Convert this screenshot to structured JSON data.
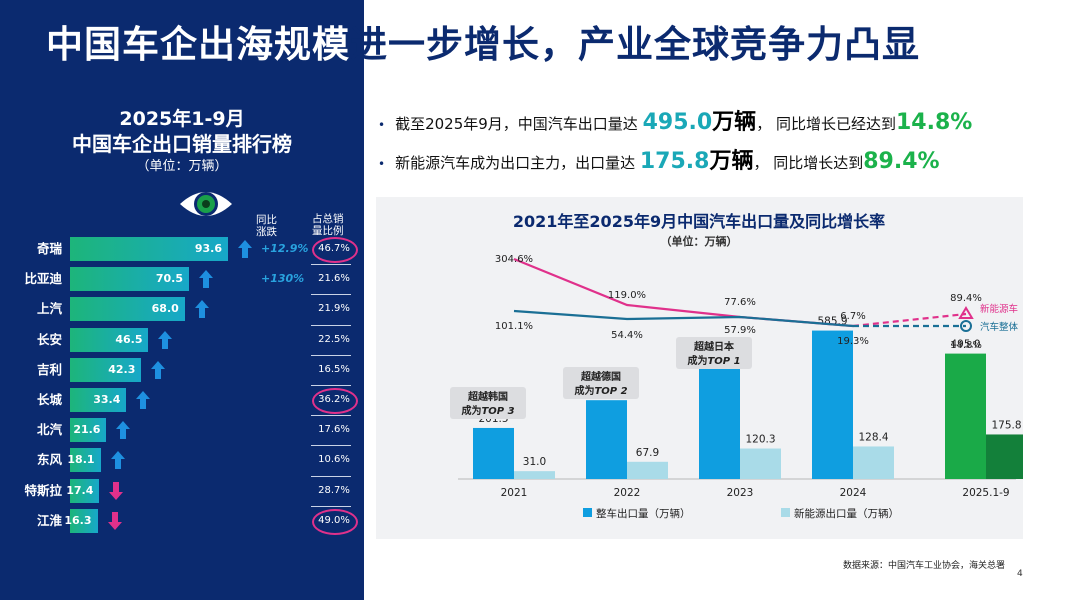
{
  "title": {
    "part1": "中国车企出海规模",
    "part2": "进一步增长，产业全球竞争力凸显"
  },
  "ranking": {
    "title_line1": "2025年1-9月",
    "title_line2": "中国车企出口销量排行榜",
    "unit": "（单位：万辆）",
    "col_yoy": [
      "同比",
      "涨跌"
    ],
    "col_share": [
      "占总销",
      "量比例"
    ],
    "max_value": 93.6,
    "rows": [
      {
        "brand": "奇瑞",
        "value": 93.6,
        "trend": "up",
        "yoy": "+12.9%",
        "share": "46.7%",
        "circled": true
      },
      {
        "brand": "比亚迪",
        "value": 70.5,
        "trend": "up",
        "yoy": "+130%",
        "share": "21.6%",
        "circled": false
      },
      {
        "brand": "上汽",
        "value": 68.0,
        "trend": "up",
        "yoy": "",
        "share": "21.9%",
        "circled": false
      },
      {
        "brand": "长安",
        "value": 46.5,
        "trend": "up",
        "yoy": "",
        "share": "22.5%",
        "circled": false
      },
      {
        "brand": "吉利",
        "value": 42.3,
        "trend": "up",
        "yoy": "",
        "share": "16.5%",
        "circled": false
      },
      {
        "brand": "长城",
        "value": 33.4,
        "trend": "up",
        "yoy": "",
        "share": "36.2%",
        "circled": true
      },
      {
        "brand": "北汽",
        "value": 21.6,
        "trend": "up",
        "yoy": "",
        "share": "17.6%",
        "circled": false
      },
      {
        "brand": "东风",
        "value": 18.1,
        "trend": "up",
        "yoy": "",
        "share": "10.6%",
        "circled": false
      },
      {
        "brand": "特斯拉",
        "value": 17.4,
        "trend": "down",
        "yoy": "",
        "share": "28.7%",
        "circled": false
      },
      {
        "brand": "江淮",
        "value": 16.3,
        "trend": "down",
        "yoy": "",
        "share": "49.0%",
        "circled": true
      }
    ]
  },
  "bullets": [
    {
      "pre": "截至2025年9月，中国汽车出口量达 ",
      "num": "495.0",
      "unit": "万辆",
      "mid": "， 同比增长已经达到",
      "pct": "14.8%"
    },
    {
      "pre": "新能源汽车成为出口主力，出口量达 ",
      "num": "175.8",
      "unit": "万辆",
      "mid": "， 同比增长达到",
      "pct": "89.4%"
    }
  ],
  "colors": {
    "bg_navy": "#0b2a6f",
    "total_bar": "#0f9ee0",
    "nev_bar": "#a9dbe8",
    "total_2025": "#1aaa48",
    "nev_2025": "#13803a",
    "nev_line": "#e0318b",
    "total_line": "#1a6f95",
    "accent_teal": "#1aa8b7",
    "accent_green": "#1bb24b"
  },
  "chart_data": {
    "type": "bar",
    "title": "2021年至2025年9月中国汽车出口量及同比增长率",
    "subtitle": "（单位：万辆）",
    "categories": [
      "2021",
      "2022",
      "2023",
      "2024",
      "2025.1-9"
    ],
    "series": [
      {
        "name": "整车出口量（万辆）",
        "values": [
          201.5,
          311.1,
          491.0,
          585.9,
          495.0
        ]
      },
      {
        "name": "新能源出口量（万辆）",
        "values": [
          31.0,
          67.9,
          120.3,
          128.4,
          175.8
        ]
      }
    ],
    "growth_lines": [
      {
        "name": "新能源车",
        "values": [
          304.6,
          119.0,
          77.6,
          6.7,
          89.4
        ],
        "labels": [
          "304.6%",
          "119.0%",
          "77.6%",
          "6.7%",
          "89.4%"
        ]
      },
      {
        "name": "汽车整体",
        "values": [
          101.1,
          54.4,
          57.9,
          19.3,
          14.8
        ],
        "labels": [
          "101.1%",
          "54.4%",
          "57.9%",
          "19.3%",
          "14.8%"
        ]
      }
    ],
    "annotations": [
      {
        "line1": "超越韩国",
        "line2": "成为",
        "emph": "TOP 3",
        "category": "2021"
      },
      {
        "line1": "超越德国",
        "line2": "成为",
        "emph": "TOP 2",
        "category": "2022"
      },
      {
        "line1": "超越日本",
        "line2": "成为",
        "emph": "TOP 1",
        "category": "2023"
      }
    ],
    "ylim": [
      0,
      700
    ],
    "legend_position": "bottom"
  },
  "source": "数据来源：中国汽车工业协会，海关总署",
  "page_number": "4"
}
